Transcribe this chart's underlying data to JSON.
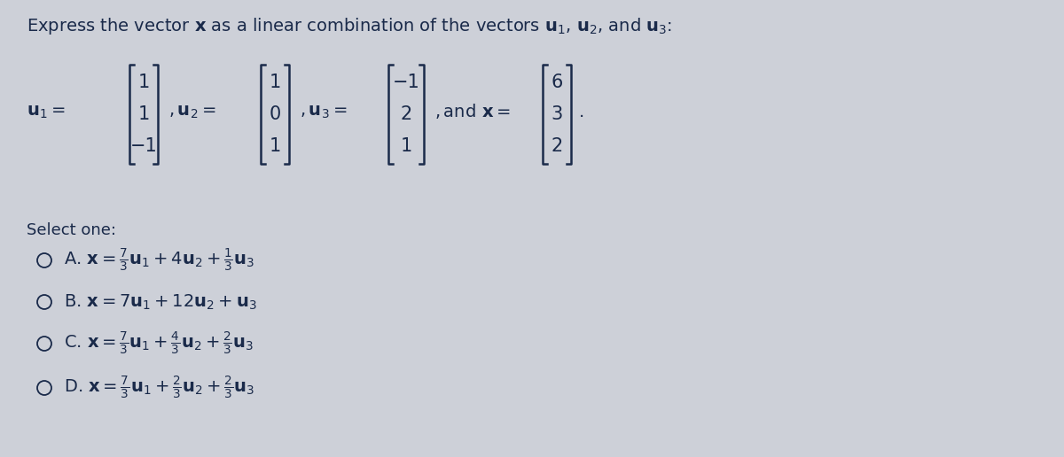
{
  "background_color": "#cdd0d8",
  "text_color": "#1a2a4a",
  "title_fontsize": 14,
  "select_fontsize": 13,
  "option_fontsize": 14,
  "matrix_fontsize": 15,
  "label_fontsize": 14
}
